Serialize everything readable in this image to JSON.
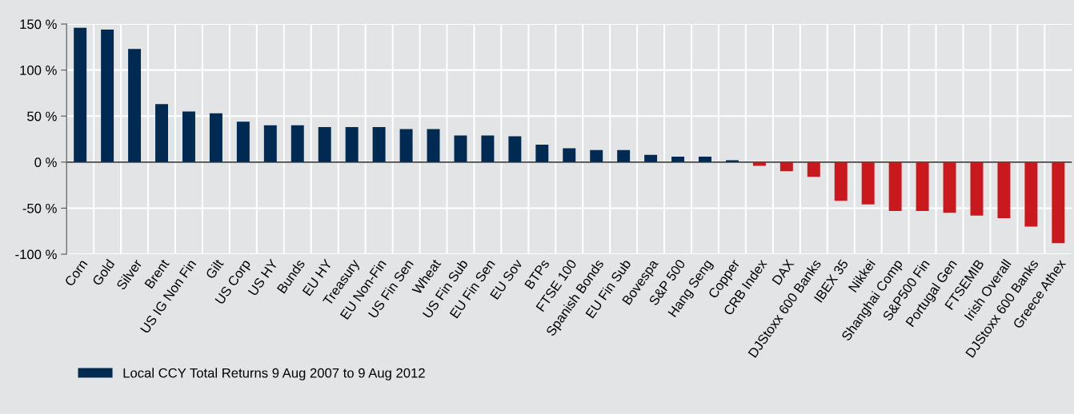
{
  "chart_data": {
    "type": "bar",
    "categories": [
      "Corn",
      "Gold",
      "Silver",
      "Brent",
      "US IG Non Fin",
      "Gilt",
      "US Corp",
      "US HY",
      "Bunds",
      "EU HY",
      "Treasury",
      "EU Non-Fin",
      "US Fin Sen",
      "Wheat",
      "US Fin Sub",
      "EU Fin Sen",
      "EU Sov",
      "BTPs",
      "FTSE 100",
      "Spanish Bonds",
      "EU Fin Sub",
      "Bovespa",
      "S&P 500",
      "Hang Seng",
      "Copper",
      "CRB Index",
      "DAX",
      "DJStoxx 600 Banks",
      "IBEX 35",
      "Nikkei",
      "Shanghai Comp",
      "S&P500 Fin",
      "Portugal Gen",
      "FTSEMIB",
      "Irish Overall",
      "DJStoxx 600 Banks",
      "Greece Athex"
    ],
    "series": [
      {
        "name": "Local CCY Total Returns 9 Aug 2007 to 9 Aug 2012",
        "color": "#002a52",
        "values": [
          146,
          144,
          123,
          63,
          55,
          53,
          44,
          40,
          40,
          38,
          38,
          38,
          36,
          36,
          29,
          29,
          28,
          19,
          15,
          13,
          13,
          8,
          6,
          6,
          2,
          -4,
          -10,
          -16,
          -42,
          -46,
          -53,
          -53,
          -55,
          -58,
          -61,
          -70,
          -88
        ],
        "colors": [
          "#002a52",
          "#002a52",
          "#002a52",
          "#002a52",
          "#002a52",
          "#002a52",
          "#002a52",
          "#002a52",
          "#002a52",
          "#002a52",
          "#002a52",
          "#002a52",
          "#002a52",
          "#002a52",
          "#002a52",
          "#002a52",
          "#002a52",
          "#002a52",
          "#002a52",
          "#002a52",
          "#002a52",
          "#002a52",
          "#002a52",
          "#002a52",
          "#002a52",
          "#c8191f",
          "#c8191f",
          "#c8191f",
          "#c8191f",
          "#c8191f",
          "#c8191f",
          "#c8191f",
          "#c8191f",
          "#c8191f",
          "#c8191f",
          "#c8191f",
          "#c8191f"
        ]
      }
    ],
    "ylim": [
      -100,
      150
    ],
    "yticks": [
      {
        "value": -100,
        "label": "-100 %"
      },
      {
        "value": -50,
        "label": "-50 %"
      },
      {
        "value": 0,
        "label": "0 %"
      },
      {
        "value": 50,
        "label": "50 %"
      },
      {
        "value": 100,
        "label": "100 %"
      },
      {
        "value": 150,
        "label": "150 %"
      }
    ],
    "grid": true,
    "legend": "bottom left"
  }
}
